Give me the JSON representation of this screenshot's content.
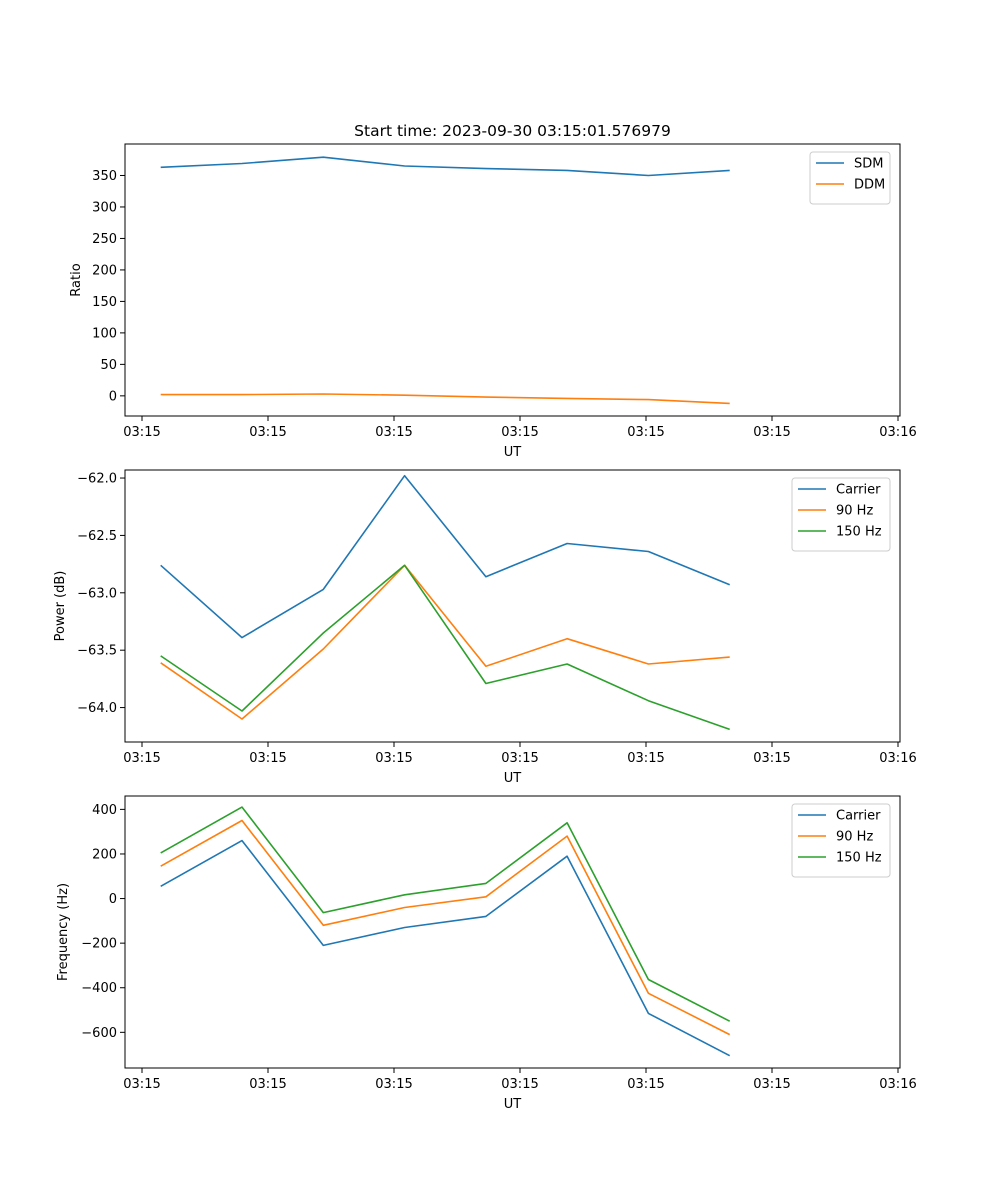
{
  "chart_data": [
    {
      "type": "line",
      "title": "Start time: 2023-09-30 03:15:01.576979",
      "xlabel": "UT",
      "ylabel": "Ratio",
      "x_tick_labels": [
        "03:15",
        "03:15",
        "03:15",
        "03:15",
        "03:15",
        "03:15",
        "03:16"
      ],
      "xlim": [
        -0.23,
        8.98
      ],
      "ylim": [
        -32,
        400
      ],
      "y_ticks": [
        0,
        50,
        100,
        150,
        200,
        250,
        300,
        350
      ],
      "x": [
        0,
        1,
        2,
        3,
        4,
        5,
        6,
        7
      ],
      "series": [
        {
          "name": "SDM",
          "color": "#1f77b4",
          "values": [
            363,
            369,
            379,
            365,
            361,
            358,
            350,
            358
          ]
        },
        {
          "name": "DDM",
          "color": "#ff7f0e",
          "values": [
            2,
            2,
            3,
            1,
            -2,
            -4,
            -6,
            -12
          ]
        }
      ],
      "legend": "top-right",
      "grid": false
    },
    {
      "type": "line",
      "title": "",
      "xlabel": "UT",
      "ylabel": "Power (dB)",
      "x_tick_labels": [
        "03:15",
        "03:15",
        "03:15",
        "03:15",
        "03:15",
        "03:15",
        "03:16"
      ],
      "xlim": [
        -0.23,
        8.98
      ],
      "ylim": [
        -64.3,
        -61.93
      ],
      "y_ticks": [
        -64.0,
        -63.5,
        -63.0,
        -62.5,
        -62.0
      ],
      "y_tick_labels": [
        "−64.0",
        "−63.5",
        "−63.0",
        "−62.5",
        "−62.0"
      ],
      "x": [
        0,
        1,
        2,
        3,
        4,
        5,
        6,
        7
      ],
      "series": [
        {
          "name": "Carrier",
          "color": "#1f77b4",
          "values": [
            -62.76,
            -63.39,
            -62.97,
            -61.98,
            -62.86,
            -62.57,
            -62.64,
            -62.93
          ]
        },
        {
          "name": "90 Hz",
          "color": "#ff7f0e",
          "values": [
            -63.61,
            -64.1,
            -63.49,
            -62.76,
            -63.64,
            -63.4,
            -63.62,
            -63.56
          ]
        },
        {
          "name": "150 Hz",
          "color": "#2ca02c",
          "values": [
            -63.55,
            -64.03,
            -63.35,
            -62.76,
            -63.79,
            -63.62,
            -63.94,
            -64.19
          ]
        }
      ],
      "legend": "top-right",
      "grid": false
    },
    {
      "type": "line",
      "title": "",
      "xlabel": "UT",
      "ylabel": "Frequency (Hz)",
      "x_tick_labels": [
        "03:15",
        "03:15",
        "03:15",
        "03:15",
        "03:15",
        "03:15",
        "03:16"
      ],
      "xlim": [
        -0.23,
        8.98
      ],
      "ylim": [
        -760,
        460
      ],
      "y_ticks": [
        -600,
        -400,
        -200,
        0,
        200,
        400
      ],
      "y_tick_labels": [
        "−600",
        "−400",
        "−200",
        "0",
        "200",
        "400"
      ],
      "x": [
        0,
        1,
        2,
        3,
        4,
        5,
        6,
        7
      ],
      "series": [
        {
          "name": "Carrier",
          "color": "#1f77b4",
          "values": [
            55,
            260,
            -210,
            -130,
            -80,
            190,
            -515,
            -705
          ]
        },
        {
          "name": "90 Hz",
          "color": "#ff7f0e",
          "values": [
            145,
            350,
            -120,
            -40,
            8,
            280,
            -425,
            -610
          ]
        },
        {
          "name": "150 Hz",
          "color": "#2ca02c",
          "values": [
            205,
            410,
            -63,
            17,
            68,
            340,
            -363,
            -550
          ]
        }
      ],
      "legend": "top-right",
      "grid": false
    }
  ]
}
